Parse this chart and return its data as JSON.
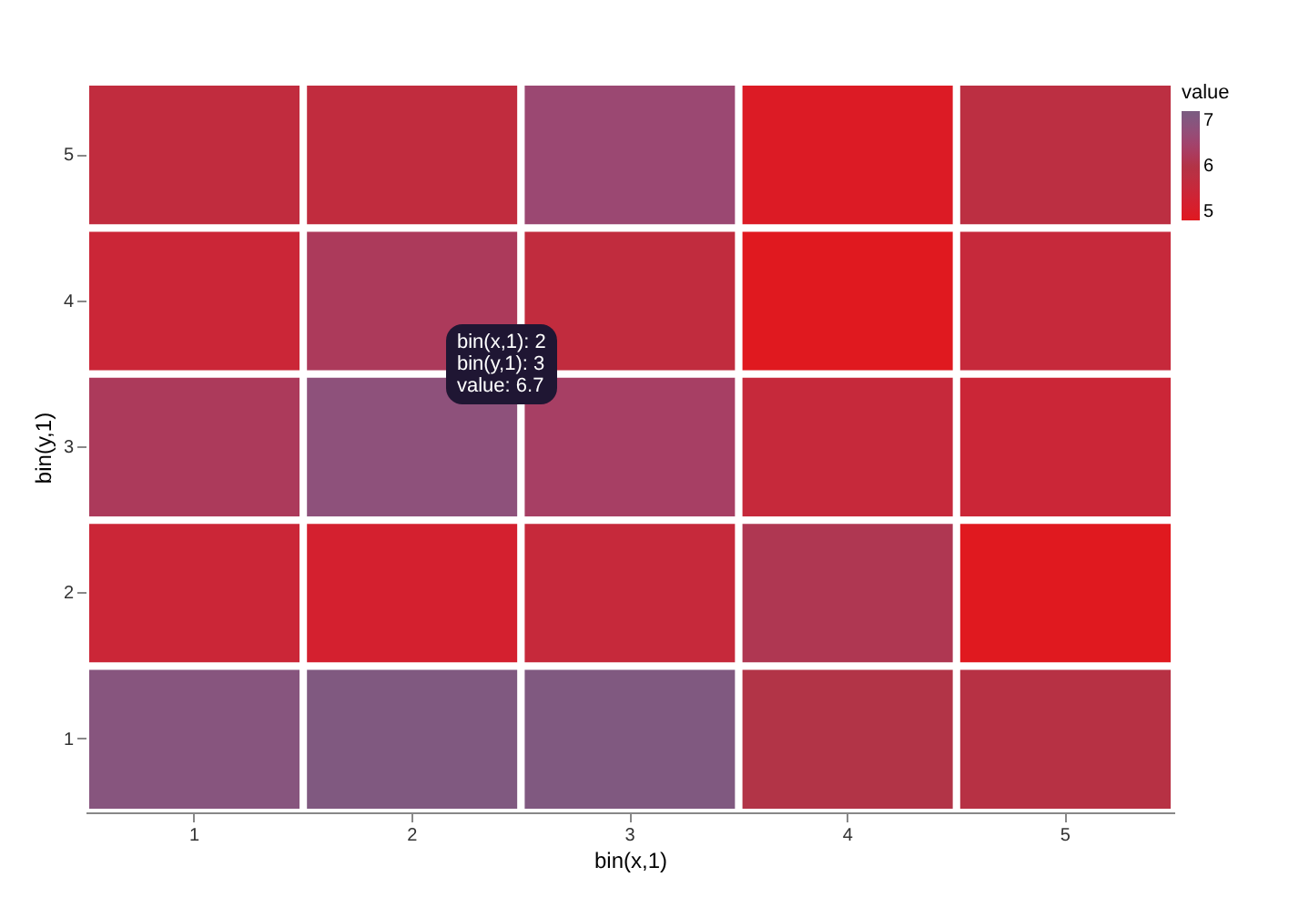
{
  "chart_data": {
    "type": "heatmap",
    "xlabel": "bin(x,1)",
    "ylabel": "bin(y,1)",
    "legend_title": "value",
    "categories": [
      "1",
      "2",
      "3",
      "4",
      "5"
    ],
    "y_categories": [
      "5",
      "4",
      "3",
      "2",
      "1"
    ],
    "cells": [
      [
        5.7,
        5.7,
        6.5,
        5.1,
        5.8
      ],
      [
        5.5,
        6.2,
        5.7,
        5.0,
        5.6
      ],
      [
        6.2,
        6.7,
        6.3,
        5.6,
        5.5
      ],
      [
        5.5,
        5.3,
        5.6,
        6.1,
        5.0
      ],
      [
        6.8,
        6.9,
        6.9,
        6.0,
        5.9
      ]
    ],
    "clim": [
      5,
      7
    ],
    "cticks": [
      5,
      6,
      7
    ],
    "colors": [
      "#e0191f",
      "#b23447",
      "#7a5c80"
    ],
    "annotations": [
      "bin(x,1): 2\nbin(y,1): 3\nvalue: 6.7"
    ]
  }
}
